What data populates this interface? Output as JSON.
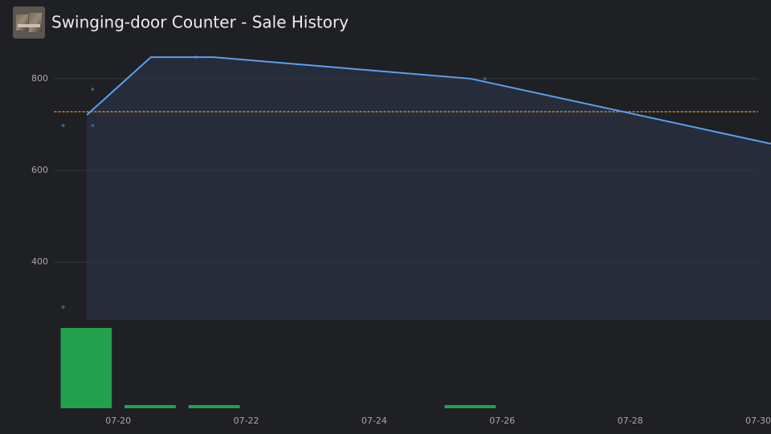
{
  "chart_data": {
    "type": "line",
    "title": "Swinging-door Counter - Sale History",
    "x": [
      19.51,
      20.51,
      21.49,
      25.51,
      30.2
    ],
    "values": [
      721,
      847,
      847,
      800,
      658
    ],
    "color": "#5b9ff0",
    "area_color": "#262c3a",
    "sales": {
      "x": [
        19.14,
        19.6,
        19.6,
        19.14,
        21.22,
        25.73
      ],
      "values": [
        698,
        777,
        698,
        302,
        847,
        800
      ],
      "color": "#3d5a80"
    },
    "reference_line": 728,
    "reference_color": "#e0a82e",
    "volume": {
      "x": [
        19.5,
        20.5,
        21.5,
        25.5
      ],
      "values": [
        25,
        1,
        1,
        1
      ],
      "color": "#22a04e"
    },
    "xlim": [
      19,
      30.2
    ],
    "xticks": [
      {
        "value": 20,
        "label": "07-20"
      },
      {
        "value": 22,
        "label": "07-22"
      },
      {
        "value": 24,
        "label": "07-24"
      },
      {
        "value": 26,
        "label": "07-26"
      },
      {
        "value": 28,
        "label": "07-28"
      },
      {
        "value": 30,
        "label": "07-30"
      }
    ],
    "ylim": [
      274,
      870
    ],
    "yticks": [
      400,
      600,
      800
    ],
    "grid": true
  }
}
